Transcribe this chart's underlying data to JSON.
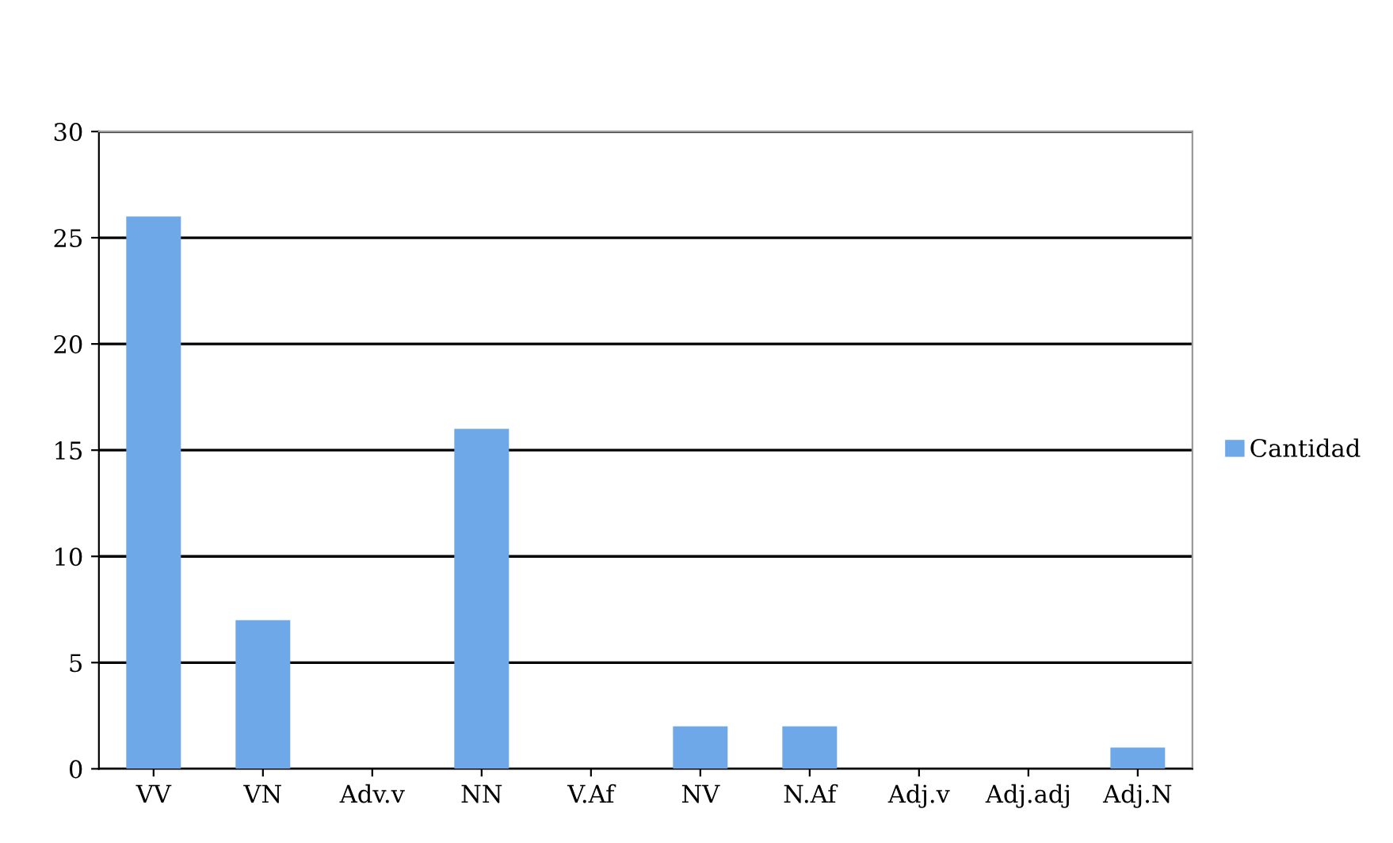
{
  "chart_data": {
    "type": "bar",
    "categories": [
      "VV",
      "VN",
      "Adv.v",
      "NN",
      "V.Af",
      "NV",
      "N.Af",
      "Adj.v",
      "Adj.adj",
      "Adj.N"
    ],
    "series": [
      {
        "name": "Cantidad",
        "color": "#6fa8e8",
        "values": [
          26,
          7,
          0,
          16,
          0,
          2,
          2,
          0,
          0,
          1
        ]
      }
    ],
    "ylim": [
      0,
      30
    ],
    "yticks": [
      0,
      5,
      10,
      15,
      20,
      25,
      30
    ],
    "grid": "y",
    "legend": "right"
  }
}
